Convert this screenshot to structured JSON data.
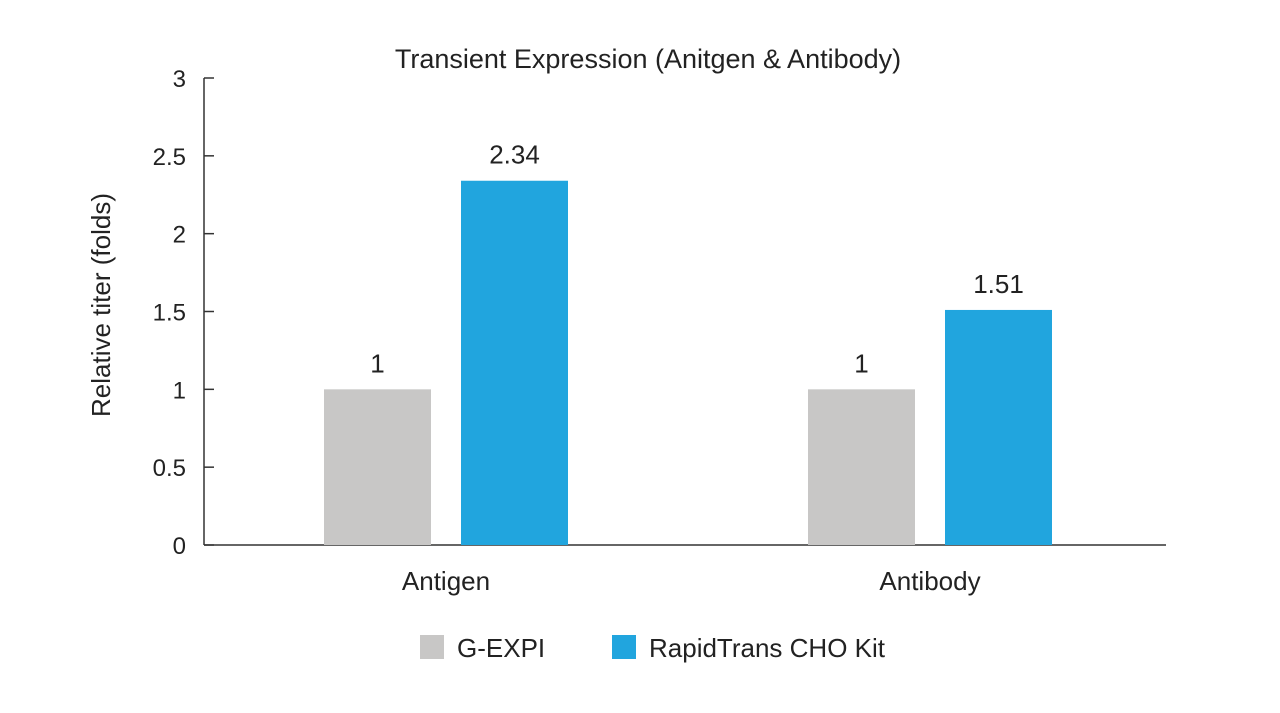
{
  "chart_data": {
    "type": "bar",
    "title": "Transient Expression (Anitgen & Antibody)",
    "xlabel": "",
    "ylabel": "Relative titer (folds)",
    "ylim": [
      0,
      3
    ],
    "yticks": [
      "0",
      "0.5",
      "1",
      "1.5",
      "2",
      "2.5",
      "3"
    ],
    "categories": [
      "Antigen",
      "Antibody"
    ],
    "series": [
      {
        "name": "G-EXPI",
        "color": "#c8c7c6",
        "values": [
          1,
          1
        ],
        "labels": [
          "1",
          "1"
        ]
      },
      {
        "name": "RapidTrans CHO Kit",
        "color": "#21a5de",
        "values": [
          2.34,
          1.51
        ],
        "labels": [
          "2.34",
          "1.51"
        ]
      }
    ],
    "grid": false,
    "legend_position": "bottom"
  }
}
